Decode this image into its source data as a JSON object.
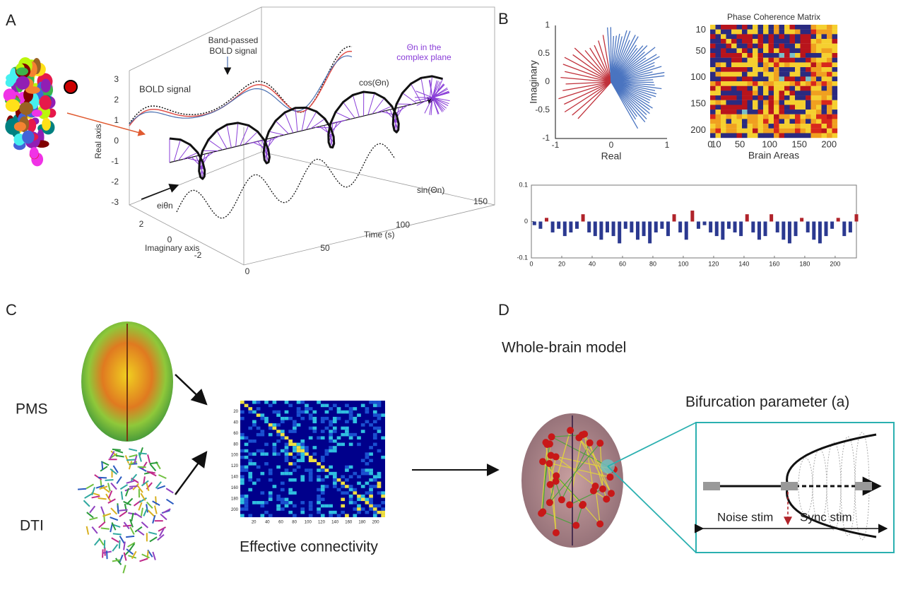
{
  "panel_labels": [
    "A",
    "B",
    "C",
    "D"
  ],
  "panel_a": {
    "annotations": {
      "bold_signal": "BOLD signal",
      "band_passed": [
        "Band-passed",
        "BOLD signal"
      ],
      "cos": "cos(Θn)",
      "sin": "sin(Θn)",
      "phasor": "eiθn",
      "complex_plane": [
        "Θn in the",
        "complex plane"
      ]
    },
    "real_axis": {
      "label": "Real axis",
      "ticks": [
        3,
        2,
        1,
        0,
        -1,
        -2,
        -3
      ]
    },
    "imaginary_axis": {
      "label": "Imaginary axis",
      "ticks": [
        2,
        0,
        -2
      ]
    },
    "time_axis": {
      "label": "Time (s)",
      "ticks": [
        0,
        50,
        100,
        150
      ]
    }
  },
  "panel_b": {
    "phase_plot": {
      "xlabel": "Real",
      "ylabel": "Imaginary",
      "xticks": [
        -1,
        0,
        1
      ],
      "yticks": [
        1,
        0.5,
        0,
        -0.5,
        -1
      ],
      "xlim": [
        -1,
        1
      ],
      "ylim": [
        -1,
        1
      ]
    },
    "coherence_matrix": {
      "title": "Phase Coherence Matrix",
      "xlabel": "Brain Areas",
      "xticks": [
        0,
        10,
        50,
        100,
        150,
        200
      ],
      "yticks": [
        10,
        50,
        100,
        150,
        200
      ],
      "lim": [
        0,
        214
      ]
    },
    "bar_chart": {
      "type": "bar",
      "xlim": [
        0,
        214
      ],
      "ylim": [
        -0.1,
        0.1
      ],
      "yticks": [
        0.1,
        0,
        -0.1
      ],
      "xticks": [
        0,
        20,
        40,
        60,
        80,
        100,
        120,
        140,
        160,
        180,
        200
      ],
      "colors": {
        "positive": "#b0232a",
        "negative": "#2b3990"
      },
      "x": [
        2,
        6,
        10,
        14,
        18,
        22,
        26,
        30,
        34,
        38,
        42,
        46,
        50,
        54,
        58,
        62,
        66,
        70,
        74,
        78,
        82,
        86,
        90,
        94,
        98,
        102,
        106,
        110,
        114,
        118,
        122,
        126,
        130,
        134,
        138,
        142,
        146,
        150,
        154,
        158,
        162,
        166,
        170,
        174,
        178,
        182,
        186,
        190,
        194,
        198,
        202,
        206,
        210,
        214
      ],
      "values": [
        -0.01,
        -0.02,
        0.01,
        -0.03,
        -0.02,
        -0.04,
        -0.03,
        -0.02,
        0.02,
        -0.03,
        -0.04,
        -0.05,
        -0.03,
        -0.04,
        -0.06,
        -0.02,
        -0.03,
        -0.05,
        -0.04,
        -0.06,
        -0.03,
        -0.02,
        -0.04,
        0.02,
        -0.03,
        -0.05,
        0.03,
        -0.02,
        -0.01,
        -0.03,
        -0.04,
        -0.05,
        -0.02,
        -0.03,
        -0.04,
        0.02,
        -0.03,
        -0.05,
        -0.04,
        0.02,
        -0.03,
        -0.05,
        -0.06,
        -0.04,
        0.01,
        -0.03,
        -0.05,
        -0.06,
        -0.04,
        -0.02,
        0.01,
        -0.04,
        -0.03,
        0.02
      ]
    }
  },
  "panel_c": {
    "pms": "PMS",
    "dti": "DTI",
    "matrix_title": "Effective connectivity",
    "matrix_ticks": [
      20,
      40,
      60,
      80,
      100,
      120,
      140,
      160,
      180,
      200
    ],
    "matrix_lim": [
      0,
      214
    ]
  },
  "panel_d": {
    "title": "Whole-brain model",
    "subtitle": "Bifurcation parameter (a)",
    "noise": "Noise stim",
    "sync": "Sync stim"
  }
}
